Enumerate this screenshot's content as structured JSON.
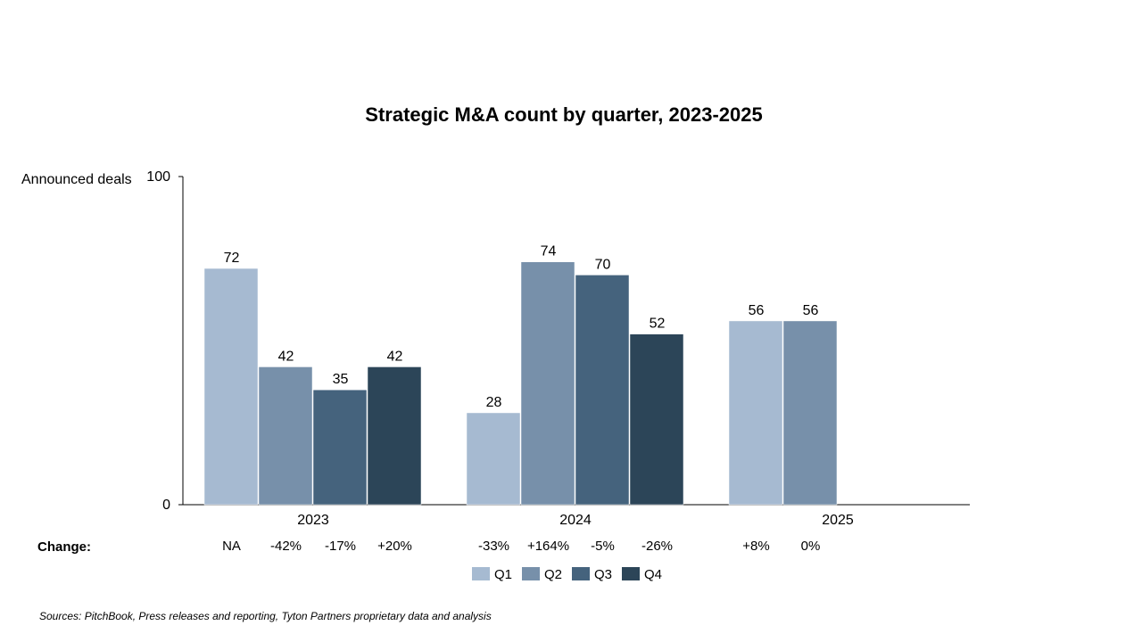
{
  "chart_data": {
    "type": "bar",
    "title": "Strategic M&A count by quarter, 2023-2025",
    "ylabel": "Announced deals",
    "xlabel": "",
    "ylim": [
      0,
      100
    ],
    "y_ticks": [
      "0",
      "100"
    ],
    "categories": [
      "2023",
      "2024",
      "2025"
    ],
    "series": [
      {
        "name": "Q1",
        "color": "#a6bad1",
        "values": [
          72,
          28,
          56
        ]
      },
      {
        "name": "Q2",
        "color": "#7790aa",
        "values": [
          42,
          74,
          56
        ]
      },
      {
        "name": "Q3",
        "color": "#45637d",
        "values": [
          35,
          70,
          null
        ]
      },
      {
        "name": "Q4",
        "color": "#2c4558",
        "values": [
          42,
          52,
          null
        ]
      }
    ],
    "legend_position": "bottom",
    "grid": false,
    "change_label": "Change:",
    "changes": [
      [
        "NA",
        "-42%",
        "-17%",
        "+20%"
      ],
      [
        "-33%",
        "+164%",
        "-5%",
        "-26%"
      ],
      [
        "+8%",
        "0%",
        null,
        null
      ]
    ]
  },
  "source_note": "Sources: PitchBook, Press releases and reporting, Tyton Partners proprietary data and analysis"
}
